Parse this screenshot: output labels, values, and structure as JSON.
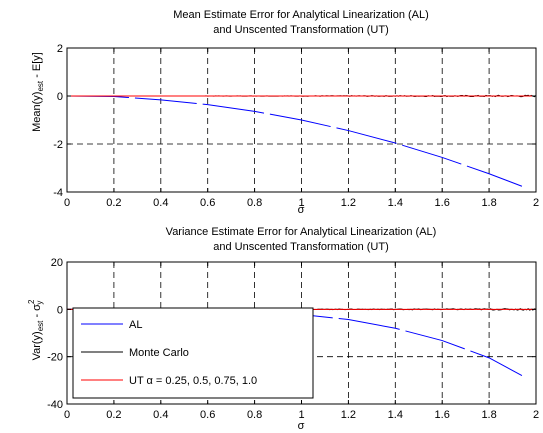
{
  "chart_data": [
    {
      "type": "line",
      "title_lines": [
        "Mean Estimate Error for Analytical Linearization (AL)",
        "and Unscented Transformation (UT)"
      ],
      "xlabel": "σ",
      "ylabel_main": "Mean(y)",
      "ylabel_sub": "est",
      "ylabel_tail": " - E[y]",
      "xlim": [
        0,
        2
      ],
      "ylim": [
        -4,
        2
      ],
      "xticks": [
        0,
        0.2,
        0.4,
        0.6,
        0.8,
        1,
        1.2,
        1.4,
        1.6,
        1.8,
        2
      ],
      "yticks": [
        -4,
        -2,
        0,
        2
      ],
      "grid": true,
      "series": [
        {
          "color": "#0000ff",
          "style": "dashed",
          "x": [
            0.0,
            0.2,
            0.4,
            0.6,
            0.8,
            1.0,
            1.2,
            1.4,
            1.6,
            1.8,
            1.94
          ],
          "y": [
            0,
            -0.02,
            -0.16,
            -0.36,
            -0.64,
            -1.0,
            -1.44,
            -1.96,
            -2.56,
            -3.24,
            -3.76
          ]
        },
        {
          "color": "#000000",
          "style": "noisy",
          "x": [
            0,
            2
          ],
          "y": [
            0,
            0
          ]
        },
        {
          "color": "#ff0000",
          "style": "solid",
          "x": [
            0,
            2
          ],
          "y": [
            0,
            0
          ]
        }
      ]
    },
    {
      "type": "line",
      "title_lines": [
        "Variance Estimate Error for Analytical Linearization (AL)",
        "and Unscented Transformation (UT)"
      ],
      "xlabel": "σ",
      "ylabel_main": "Var(y)",
      "ylabel_sub": "est",
      "ylabel_mid": " - σ",
      "ylabel_sup": "2",
      "ylabel_sub2": "y",
      "xlim": [
        0,
        2
      ],
      "ylim": [
        -40,
        20
      ],
      "xticks": [
        0,
        0.2,
        0.4,
        0.6,
        0.8,
        1,
        1.2,
        1.4,
        1.6,
        1.8,
        2
      ],
      "yticks": [
        -40,
        -20,
        0,
        20
      ],
      "grid": true,
      "series": [
        {
          "name": "AL",
          "color": "#0000ff",
          "style": "dashed",
          "x": [
            0.0,
            0.4,
            0.6,
            0.8,
            1.0,
            1.2,
            1.4,
            1.6,
            1.8,
            1.94
          ],
          "y": [
            0,
            -0.1,
            -0.4,
            -1.2,
            -2.2,
            -4.3,
            -8.0,
            -13.2,
            -20.5,
            -28.0
          ]
        },
        {
          "name": "Monte Carlo",
          "color": "#000000",
          "style": "noisy",
          "x": [
            0,
            2
          ],
          "y": [
            0,
            0
          ]
        },
        {
          "name": "UT α = 0.25, 0.5, 0.75, 1.0",
          "color": "#ff0000",
          "style": "solid",
          "x": [
            0,
            2
          ],
          "y": [
            0,
            0
          ]
        }
      ],
      "legend_placement": "bottom-left"
    }
  ]
}
